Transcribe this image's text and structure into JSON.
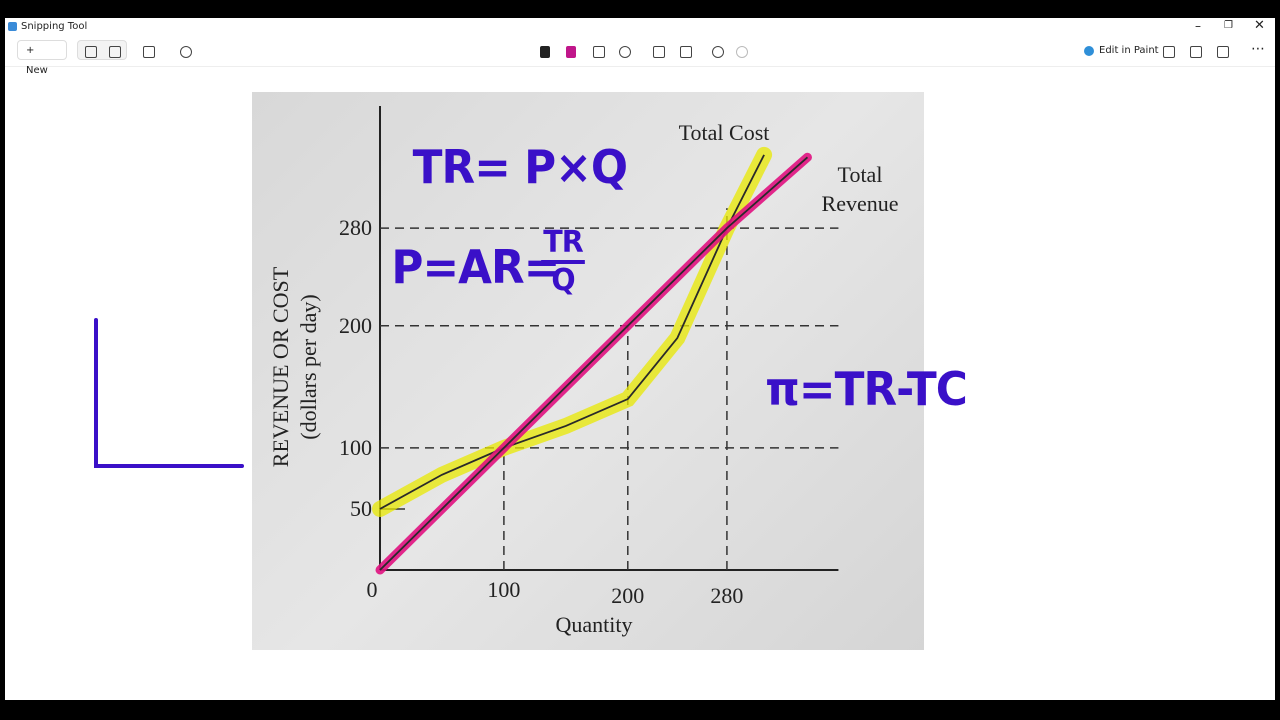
{
  "window": {
    "title": "Snipping Tool"
  },
  "toolbar": {
    "new": "New",
    "edit_in_paint": "Edit in Paint"
  },
  "chart_data": {
    "type": "line",
    "x_label": "Quantity",
    "y_label": "REVENUE OR COST",
    "y_sublabel": "(dollars per day)",
    "xlim": [
      0,
      370
    ],
    "ylim": [
      0,
      380
    ],
    "xticks": [
      0,
      100,
      200,
      280
    ],
    "yticks": [
      50,
      100,
      200,
      280
    ],
    "series": [
      {
        "name": "Total Cost",
        "color": "#2a2a2a",
        "highlight": "#e8e800",
        "x": [
          0,
          50,
          100,
          150,
          200,
          240,
          280,
          310
        ],
        "values": [
          50,
          78,
          100,
          118,
          140,
          190,
          280,
          340
        ]
      },
      {
        "name": "Total Revenue",
        "color": "#2a2a2a",
        "highlight": "#e0117f",
        "x": [
          0,
          100,
          200,
          280,
          345
        ],
        "values": [
          0,
          100,
          200,
          280,
          338
        ]
      }
    ]
  },
  "annotations": {
    "tr": "TR= P×Q",
    "p_lhs": "P=AR=",
    "p_num": "TR",
    "p_den": "Q",
    "profit": "π=TR-TC"
  }
}
